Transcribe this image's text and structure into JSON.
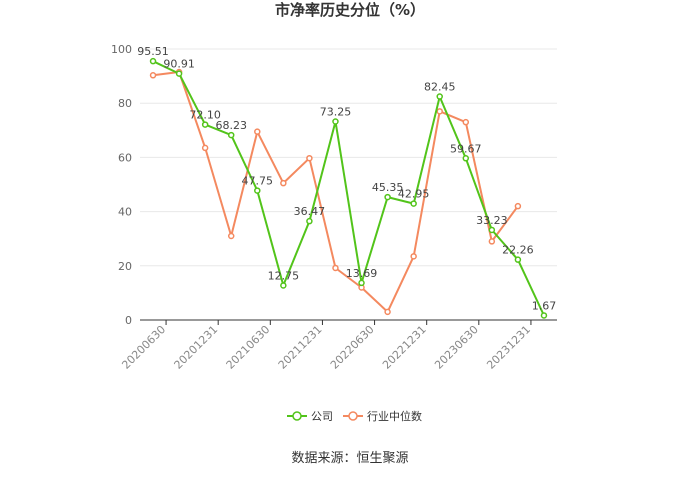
{
  "chart_data": {
    "type": "line",
    "title": "市净率历史分位（%）",
    "source": "数据来源：恒生聚源",
    "ylim": [
      0,
      100
    ],
    "yticks": [
      0,
      20,
      40,
      60,
      80,
      100
    ],
    "xticks": [
      "20200630",
      "20201231",
      "20210630",
      "20211231",
      "20220630",
      "20221231",
      "20230630",
      "20231231"
    ],
    "x": [
      "2020Q2",
      "2020Q3",
      "2020Q4",
      "2021Q1",
      "2021Q2",
      "2021Q3",
      "2021Q4",
      "2022Q1",
      "2022Q2",
      "2022Q3",
      "2022Q4",
      "2023Q1",
      "2023Q2",
      "2023Q3",
      "2023Q4",
      "2024Q1"
    ],
    "grid": true,
    "legend_position": "bottom",
    "series": [
      {
        "name": "公司",
        "color": "#52c41a",
        "values": [
          95.51,
          90.91,
          72.1,
          68.23,
          47.75,
          12.75,
          36.47,
          73.25,
          13.69,
          45.35,
          42.95,
          82.45,
          59.67,
          33.23,
          22.26,
          1.67
        ],
        "labels": [
          "95.51",
          "90.91",
          "72.10",
          "68.23",
          "47.75",
          "12.75",
          "36.47",
          "73.25",
          "13.69",
          "45.35",
          "42.95",
          "82.45",
          "59.67",
          "33.23",
          "22.26",
          "1.67"
        ]
      },
      {
        "name": "行业中位数",
        "color": "#f4895f",
        "values": [
          90.3,
          91.5,
          63.5,
          31.0,
          69.5,
          50.5,
          59.7,
          19.2,
          12.0,
          3.0,
          23.5,
          77.0,
          73.0,
          29.0,
          42.0,
          null
        ]
      }
    ]
  }
}
